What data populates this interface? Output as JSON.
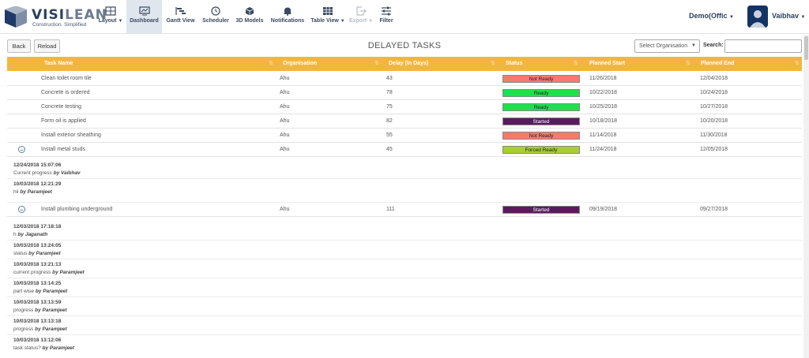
{
  "app": {
    "brand": "VISI",
    "brand_suffix": "LEAN",
    "tagline": "Construction. Simplified"
  },
  "nav": {
    "layout": "Layout",
    "dashboard": "Dashboard",
    "gantt": "Gantt View",
    "scheduler": "Scheduler",
    "models": "3D Models",
    "notifications": "Notifications",
    "table_view": "Table View",
    "export": "Export",
    "filter": "Filter",
    "org": "Demo(Offic",
    "user": "Vaibhav"
  },
  "toolbar": {
    "back": "Back",
    "reload": "Reload",
    "title": "DELAYED TASKS",
    "org_placeholder": "Select Organisation",
    "search_label": "Search:"
  },
  "table": {
    "headers": {
      "task": "Task Name",
      "org": "Organisation",
      "delay": "Delay (In Days)",
      "status": "Status",
      "start": "Planned Start",
      "end": "Planned End"
    },
    "rows": [
      {
        "task": "Clean toilet room tile",
        "org": "Ahu",
        "delay": "43",
        "status": "Not Ready",
        "start": "11/26/2018",
        "end": "12/04/2018",
        "color": "#f87a6a",
        "text_color": "#222222"
      },
      {
        "task": "Concrete is ordered",
        "org": "Ahu",
        "delay": "78",
        "status": "Ready",
        "start": "10/22/2018",
        "end": "10/24/2018",
        "color": "#1ee04c",
        "text_color": "#222222"
      },
      {
        "task": "Concrete testing",
        "org": "Ahu",
        "delay": "75",
        "status": "Ready",
        "start": "10/25/2018",
        "end": "10/27/2018",
        "color": "#1ee04c",
        "text_color": "#222222"
      },
      {
        "task": "Form oil is applied",
        "org": "Ahu",
        "delay": "82",
        "status": "Started",
        "start": "10/18/2018",
        "end": "10/20/2018",
        "color": "#5a1a5e",
        "text_color": "#ffffff"
      },
      {
        "task": "Install exterior sheathing",
        "org": "Ahu",
        "delay": "55",
        "status": "Not Ready",
        "start": "11/14/2018",
        "end": "11/30/2018",
        "color": "#f87a6a",
        "text_color": "#222222"
      },
      {
        "task": "Install metal studs",
        "org": "Ahu",
        "delay": "45",
        "status": "Forced Ready",
        "start": "11/24/2018",
        "end": "12/05/2018",
        "color": "#a8cf2e",
        "text_color": "#222222"
      },
      {
        "task": "Install plumbing underground",
        "org": "Ahu",
        "delay": "111",
        "status": "Started",
        "start": "09/19/2018",
        "end": "09/27/2018",
        "color": "#5a1a5e",
        "text_color": "#ffffff"
      }
    ]
  },
  "comments_metal_studs": [
    {
      "time": "12/24/2018 15:07:06",
      "text": "Current progress",
      "by": "by Vaibhav"
    },
    {
      "time": "10/03/2018 12:21:29",
      "text": "hii",
      "by": "by Paramjeet"
    }
  ],
  "comments_plumbing": [
    {
      "time": "12/03/2018 17:18:18",
      "text": "h",
      "by": "by Jaganath"
    },
    {
      "time": "10/03/2018 13:24:05",
      "text": "status",
      "by": "by Paramjeet"
    },
    {
      "time": "10/03/2018 13:21:13",
      "text": "current progress",
      "by": "by Paramjeet"
    },
    {
      "time": "10/03/2018 13:14:25",
      "text": "part wise",
      "by": "by Paramjeet"
    },
    {
      "time": "10/03/2018 13:13:59",
      "text": "progress",
      "by": "by Paramjeet"
    },
    {
      "time": "10/03/2018 13:13:18",
      "text": "progress",
      "by": "by Paramjeet"
    },
    {
      "time": "10/03/2018 13:12:06",
      "text": "task status?",
      "by": "by Paramjeet"
    }
  ]
}
